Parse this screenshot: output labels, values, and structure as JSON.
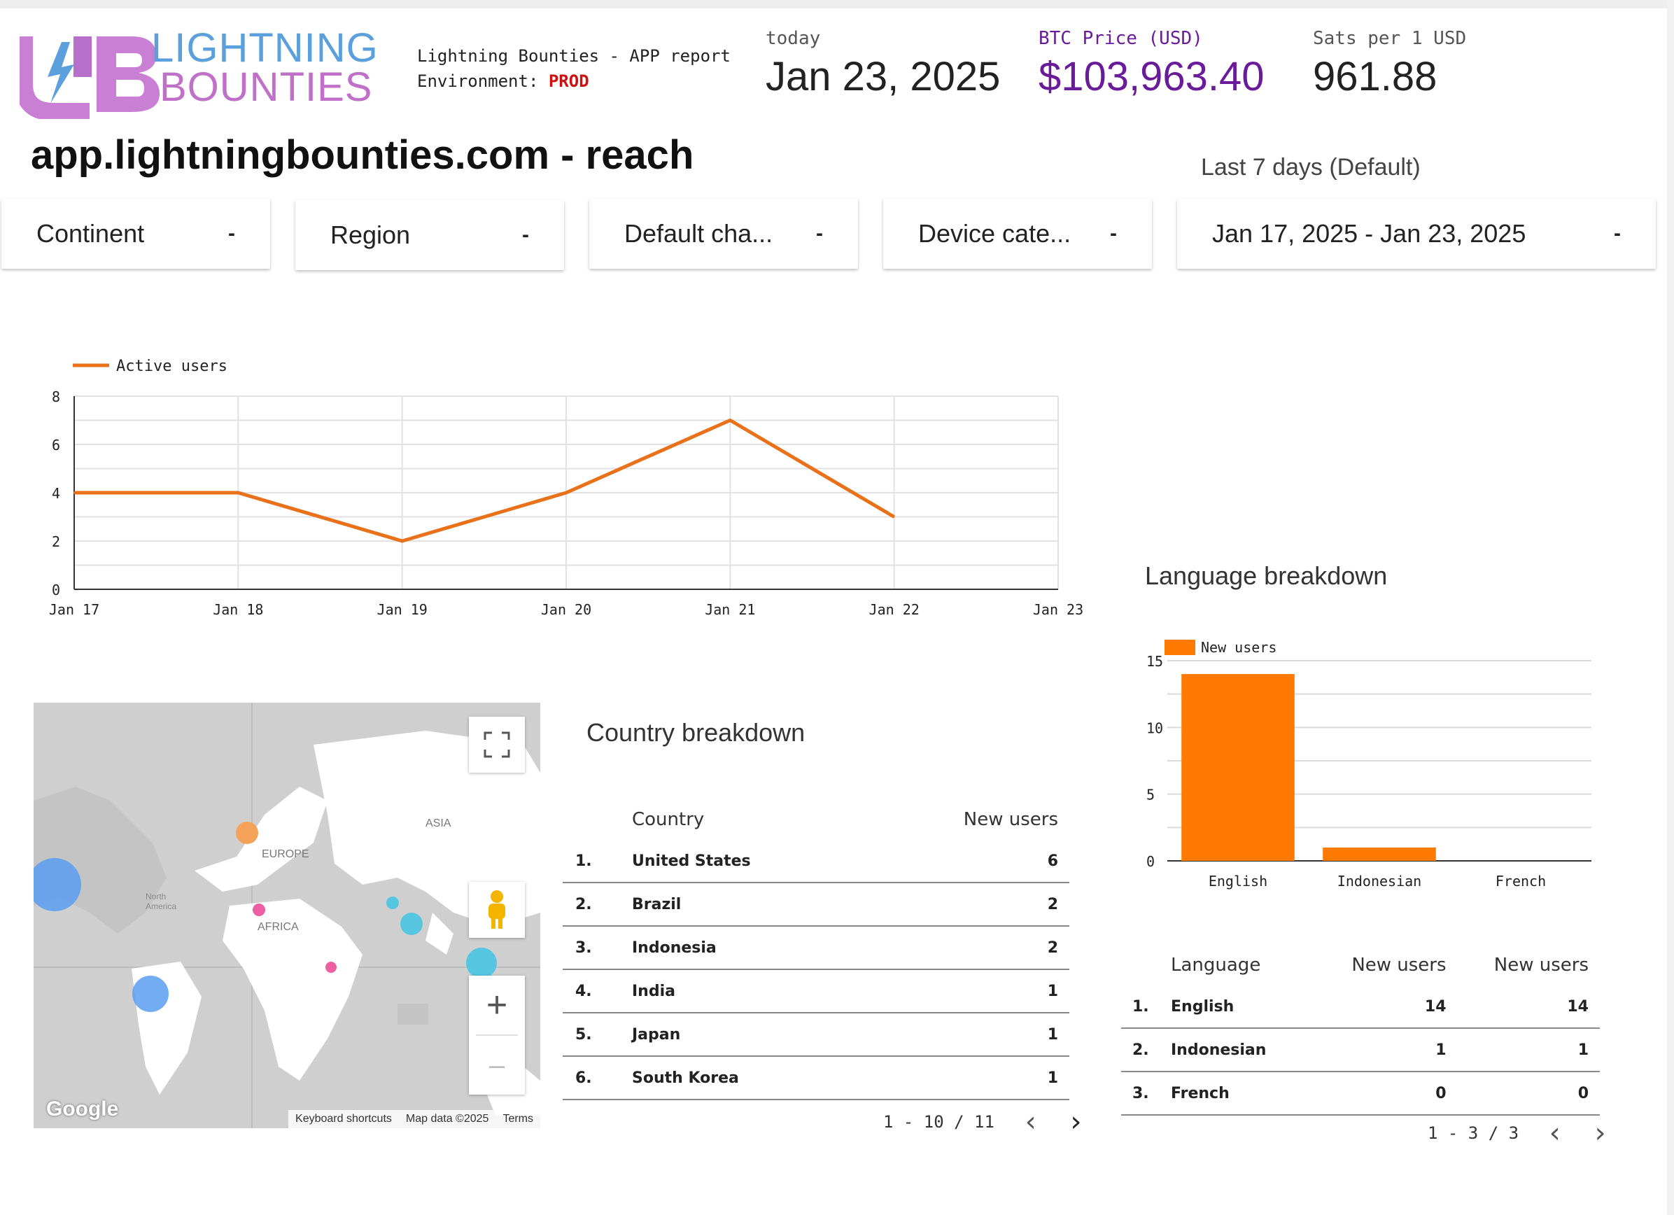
{
  "header": {
    "logo": {
      "line1": "LIGHTNING",
      "line2": "BOUNTIES"
    },
    "report_title": "Lightning Bounties - APP report",
    "environment_label": "Environment:",
    "environment_value": "PROD",
    "today": {
      "label": "today",
      "value": "Jan 23, 2025"
    },
    "btc": {
      "label": "BTC Price (USD)",
      "value": "$103,963.40"
    },
    "sats": {
      "label": "Sats per 1 USD",
      "value": "961.88"
    }
  },
  "page_title": "app.lightningbounties.com - reach",
  "range_label": "Last 7 days (Default)",
  "filters": [
    {
      "label": "Continent"
    },
    {
      "label": "Region"
    },
    {
      "label": "Default cha..."
    },
    {
      "label": "Device cate..."
    },
    {
      "label": "Jan 17, 2025 - Jan 23, 2025"
    }
  ],
  "chart_data": [
    {
      "type": "line",
      "title": "",
      "x": [
        "Jan 17",
        "Jan 18",
        "Jan 19",
        "Jan 20",
        "Jan 21",
        "Jan 22",
        "Jan 23"
      ],
      "series": [
        {
          "name": "Active users",
          "values": [
            4,
            4,
            2,
            4,
            7,
            3,
            null
          ],
          "color": "#e8711a"
        }
      ],
      "yticks": [
        0,
        2,
        4,
        6,
        8
      ],
      "ylim": [
        0,
        8
      ],
      "grid": true,
      "legend": "top-left"
    },
    {
      "type": "bar",
      "title": "Language breakdown",
      "categories": [
        "English",
        "Indonesian",
        "French"
      ],
      "series": [
        {
          "name": "New users",
          "values": [
            14,
            1,
            0
          ],
          "color": "#ff7a00"
        }
      ],
      "yticks": [
        0,
        5,
        10,
        15
      ],
      "ylim": [
        0,
        15
      ],
      "grid": true,
      "legend": "top-left"
    }
  ],
  "country": {
    "title": "Country breakdown",
    "col_country": "Country",
    "col_new_users": "New users",
    "rows": [
      {
        "rank": "1.",
        "name": "United States",
        "value": "6"
      },
      {
        "rank": "2.",
        "name": "Brazil",
        "value": "2"
      },
      {
        "rank": "3.",
        "name": "Indonesia",
        "value": "2"
      },
      {
        "rank": "4.",
        "name": "India",
        "value": "1"
      },
      {
        "rank": "5.",
        "name": "Japan",
        "value": "1"
      },
      {
        "rank": "6.",
        "name": "South Korea",
        "value": "1"
      }
    ],
    "pager": "1 - 10 / 11"
  },
  "language": {
    "col_language": "Language",
    "col_new_users_1": "New users",
    "col_new_users_2": "New users",
    "rows": [
      {
        "rank": "1.",
        "name": "English",
        "v1": "14",
        "v2": "14"
      },
      {
        "rank": "2.",
        "name": "Indonesian",
        "v1": "1",
        "v2": "1"
      },
      {
        "rank": "3.",
        "name": "French",
        "v1": "0",
        "v2": "0"
      }
    ],
    "pager": "1 - 3 / 3"
  },
  "map": {
    "label_asia": "ASIA",
    "label_europe": "EUROPE",
    "label_africa": "AFRICA",
    "label_na": "North America",
    "google": "Google",
    "attrib_shortcuts": "Keyboard shortcuts",
    "attrib_data": "Map data ©2025",
    "attrib_terms": "Terms",
    "icons": [
      "fullscreen-icon",
      "pegman-icon",
      "zoom-in-icon",
      "zoom-out-icon"
    ]
  }
}
